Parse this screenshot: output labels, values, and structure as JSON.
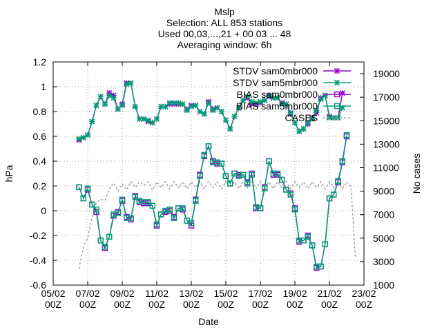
{
  "chart_data": {
    "type": "line",
    "title_lines": [
      "Mslp",
      "Selection: ALL    853 stations",
      "Used 00,03,...,21 + 00 03 ... 48",
      "Averaging window:  6h"
    ],
    "xlabel": "Date",
    "ylabel": "hPa",
    "y2label": "No cases",
    "xlim": [
      0,
      18
    ],
    "ylim": [
      -0.6,
      1.2
    ],
    "y2lim": [
      1000,
      20000
    ],
    "x_ticks": [
      {
        "x": 0,
        "l1": "05/02",
        "l2": "00Z"
      },
      {
        "x": 2,
        "l1": "07/02",
        "l2": "00Z"
      },
      {
        "x": 4,
        "l1": "09/02",
        "l2": "00Z"
      },
      {
        "x": 6,
        "l1": "11/02",
        "l2": "00Z"
      },
      {
        "x": 8,
        "l1": "13/02",
        "l2": "00Z"
      },
      {
        "x": 10,
        "l1": "15/02",
        "l2": "00Z"
      },
      {
        "x": 12,
        "l1": "17/02",
        "l2": "00Z"
      },
      {
        "x": 14,
        "l1": "19/02",
        "l2": "00Z"
      },
      {
        "x": 16,
        "l1": "21/02",
        "l2": "00Z"
      },
      {
        "x": 18,
        "l1": "23/02",
        "l2": "00Z"
      }
    ],
    "y_ticks": [
      -0.6,
      -0.4,
      -0.2,
      0,
      0.2,
      0.4,
      0.6,
      0.8,
      1,
      1.2
    ],
    "y_tick_labels": [
      "-0.6",
      "-0.4",
      "-0.2",
      "0",
      "0.2",
      "0.4",
      "0.6",
      "0.8",
      "1",
      "1.2"
    ],
    "y2_ticks": [
      1000,
      3000,
      5000,
      7000,
      9000,
      11000,
      13000,
      15000,
      17000,
      19000
    ],
    "y2_tick_labels": [
      "1000",
      "3000",
      "5000",
      "7000",
      "9000",
      "11000",
      "13000",
      "15000",
      "17000",
      "19000"
    ],
    "grid": true,
    "legend_position": "top-right",
    "series": [
      {
        "name": "STDV sam0mbr000",
        "kind": "stdv",
        "color": "#9400d3",
        "marker": "x",
        "x": [
          1.5,
          1.75,
          2,
          2.25,
          2.5,
          2.75,
          3,
          3.25,
          3.5,
          3.75,
          4,
          4.25,
          4.5,
          4.75,
          5,
          5.25,
          5.5,
          5.75,
          6,
          6.25,
          6.5,
          6.75,
          7,
          7.25,
          7.5,
          7.75,
          8,
          8.25,
          8.5,
          8.75,
          9,
          9.25,
          9.5,
          9.75,
          10,
          10.25,
          10.5,
          10.75,
          11,
          11.25,
          11.5,
          11.75,
          12,
          12.25,
          12.5,
          12.75,
          13,
          13.25,
          13.5,
          13.75,
          14,
          14.25,
          14.5,
          14.75,
          15,
          15.25,
          15.5,
          15.75,
          16,
          16.25,
          16.5,
          16.75,
          17,
          17.25
        ],
        "y": [
          0.57,
          0.59,
          0.61,
          0.72,
          0.85,
          0.92,
          0.86,
          0.95,
          0.93,
          0.82,
          0.86,
          1.03,
          1.03,
          0.84,
          0.74,
          0.74,
          0.72,
          0.71,
          0.74,
          0.84,
          0.84,
          0.86,
          0.86,
          0.86,
          0.86,
          0.82,
          0.85,
          0.85,
          0.8,
          0.78,
          0.88,
          0.82,
          0.83,
          0.8,
          0.73,
          0.66,
          0.76,
          0.83,
          0.89,
          0.91,
          0.86,
          0.86,
          0.87,
          0.89,
          0.92,
          0.91,
          0.91,
          0.87,
          0.86,
          0.78,
          0.71,
          0.64,
          0.66,
          0.7,
          0.75,
          0.79,
          0.91,
          0.93,
          0.76,
          0.75,
          0.75,
          0.95,
          null,
          null
        ]
      },
      {
        "name": "STDV sam5mbr000",
        "kind": "stdv",
        "color": "#009e73",
        "marker": "x",
        "x": [
          1.5,
          1.75,
          2,
          2.25,
          2.5,
          2.75,
          3,
          3.25,
          3.5,
          3.75,
          4,
          4.25,
          4.5,
          4.75,
          5,
          5.25,
          5.5,
          5.75,
          6,
          6.25,
          6.5,
          6.75,
          7,
          7.25,
          7.5,
          7.75,
          8,
          8.25,
          8.5,
          8.75,
          9,
          9.25,
          9.5,
          9.75,
          10,
          10.25,
          10.5,
          10.75,
          11,
          11.25,
          11.5,
          11.75,
          12,
          12.25,
          12.5,
          12.75,
          13,
          13.25,
          13.5,
          13.75,
          14,
          14.25,
          14.5,
          14.75,
          15,
          15.25,
          15.5,
          15.75,
          16,
          16.25,
          16.5,
          16.75,
          17,
          17.25
        ],
        "y": [
          0.58,
          0.59,
          0.61,
          0.72,
          0.85,
          0.92,
          0.86,
          0.93,
          0.91,
          0.82,
          0.85,
          1.02,
          1.03,
          0.84,
          0.74,
          0.74,
          0.73,
          0.71,
          0.74,
          0.84,
          0.84,
          0.87,
          0.87,
          0.87,
          0.86,
          0.81,
          0.84,
          0.85,
          0.8,
          0.78,
          0.87,
          0.81,
          0.83,
          0.8,
          0.73,
          0.66,
          0.76,
          0.83,
          0.89,
          0.92,
          0.88,
          0.87,
          0.88,
          0.89,
          0.93,
          0.91,
          0.91,
          0.86,
          0.86,
          0.79,
          0.71,
          0.64,
          0.66,
          0.71,
          0.74,
          0.81,
          0.9,
          0.93,
          0.75,
          0.75,
          0.75,
          0.83,
          null,
          null
        ]
      },
      {
        "name": "BIAS sam0mbr000",
        "kind": "bias",
        "color": "#9400d3",
        "marker": "square",
        "x": [
          1.5,
          1.75,
          2,
          2.25,
          2.5,
          2.75,
          3,
          3.25,
          3.5,
          3.75,
          4,
          4.25,
          4.5,
          4.75,
          5,
          5.25,
          5.5,
          5.75,
          6,
          6.25,
          6.5,
          6.75,
          7,
          7.25,
          7.5,
          7.75,
          8,
          8.25,
          8.5,
          8.75,
          9,
          9.25,
          9.5,
          9.75,
          10,
          10.25,
          10.5,
          10.75,
          11,
          11.25,
          11.5,
          11.75,
          12,
          12.25,
          12.5,
          12.75,
          13,
          13.25,
          13.5,
          13.75,
          14,
          14.25,
          14.5,
          14.75,
          15,
          15.25,
          15.5,
          15.75,
          16,
          16.25,
          16.5,
          16.75,
          17,
          17.25
        ],
        "y": [
          0.19,
          0.1,
          0.17,
          0.05,
          -0.01,
          -0.24,
          -0.3,
          -0.21,
          -0.04,
          -0.01,
          0.08,
          -0.05,
          -0.07,
          0.12,
          0.07,
          0.06,
          0.06,
          0.04,
          -0.12,
          -0.03,
          -0.01,
          0,
          -0.05,
          0.02,
          0.01,
          -0.08,
          -0.12,
          0.09,
          0.29,
          0.44,
          0.52,
          0.4,
          0.38,
          0.38,
          0.28,
          0.22,
          0.3,
          0.29,
          0.29,
          0.23,
          0.3,
          0.02,
          0.02,
          0.19,
          0.4,
          0.29,
          0.29,
          0.25,
          0.17,
          0.14,
          0.02,
          -0.25,
          -0.24,
          -0.2,
          -0.28,
          -0.46,
          -0.45,
          -0.27,
          0.1,
          0.13,
          0.23,
          0.39,
          0.6,
          null
        ]
      },
      {
        "name": "BIAS sam5mbr000",
        "kind": "bias",
        "color": "#009e73",
        "marker": "square",
        "x": [
          1.5,
          1.75,
          2,
          2.25,
          2.5,
          2.75,
          3,
          3.25,
          3.5,
          3.75,
          4,
          4.25,
          4.5,
          4.75,
          5,
          5.25,
          5.5,
          5.75,
          6,
          6.25,
          6.5,
          6.75,
          7,
          7.25,
          7.5,
          7.75,
          8,
          8.25,
          8.5,
          8.75,
          9,
          9.25,
          9.5,
          9.75,
          10,
          10.25,
          10.5,
          10.75,
          11,
          11.25,
          11.5,
          11.75,
          12,
          12.25,
          12.5,
          12.75,
          13,
          13.25,
          13.5,
          13.75,
          14,
          14.25,
          14.5,
          14.75,
          15,
          15.25,
          15.5,
          15.75,
          16,
          16.25,
          16.5,
          16.75,
          17,
          17.25
        ],
        "y": [
          0.19,
          0.1,
          0.18,
          0.05,
          0.01,
          -0.24,
          -0.29,
          -0.21,
          -0.03,
          -0.02,
          0.09,
          -0.06,
          -0.06,
          0.11,
          0.08,
          0.07,
          0.07,
          0.04,
          -0.11,
          -0.03,
          0,
          0.01,
          -0.06,
          0.02,
          0.02,
          -0.08,
          -0.1,
          0.08,
          0.28,
          0.45,
          0.52,
          0.39,
          0.39,
          0.38,
          0.28,
          0.22,
          0.3,
          0.28,
          0.29,
          0.22,
          0.29,
          0.03,
          0.02,
          0.18,
          0.4,
          0.3,
          0.3,
          0.25,
          0.17,
          0.13,
          0.01,
          -0.24,
          -0.24,
          -0.21,
          -0.28,
          -0.45,
          -0.45,
          -0.27,
          0.1,
          0.13,
          0.24,
          0.4,
          0.61,
          null
        ]
      },
      {
        "name": "CASES",
        "kind": "cases",
        "color": "#a0a0a0",
        "marker": "none",
        "axis": "y2",
        "x": [
          1.5,
          1.75,
          2,
          2.25,
          2.5,
          2.75,
          3,
          3.25,
          3.5,
          3.75,
          4,
          4.25,
          4.5,
          4.75,
          5,
          5.25,
          5.5,
          5.75,
          6,
          6.25,
          6.5,
          6.75,
          7,
          7.25,
          7.5,
          7.75,
          8,
          8.25,
          8.5,
          8.75,
          9,
          9.25,
          9.5,
          9.75,
          10,
          10.25,
          10.5,
          10.75,
          11,
          11.25,
          11.5,
          11.75,
          12,
          12.25,
          12.5,
          12.75,
          13,
          13.25,
          13.5,
          13.75,
          14,
          14.25,
          14.5,
          14.75,
          15,
          15.25,
          15.5,
          15.75,
          16,
          16.25,
          16.5,
          16.75,
          17,
          17.25,
          17.5
        ],
        "y": [
          2400,
          4300,
          5000,
          6800,
          8000,
          8300,
          8200,
          9200,
          9700,
          9000,
          9600,
          9100,
          9800,
          9300,
          9800,
          9500,
          9800,
          9100,
          9800,
          9300,
          9800,
          9200,
          9800,
          9300,
          9800,
          9200,
          9800,
          9300,
          9800,
          9200,
          9800,
          9300,
          9800,
          9200,
          9800,
          9300,
          9800,
          9200,
          9800,
          9300,
          9800,
          9200,
          9800,
          9300,
          9800,
          9200,
          9800,
          9300,
          9800,
          9200,
          9800,
          9300,
          9800,
          9200,
          9800,
          9300,
          9800,
          9200,
          9800,
          9300,
          9800,
          9200,
          9800,
          9400,
          3400
        ]
      }
    ]
  }
}
